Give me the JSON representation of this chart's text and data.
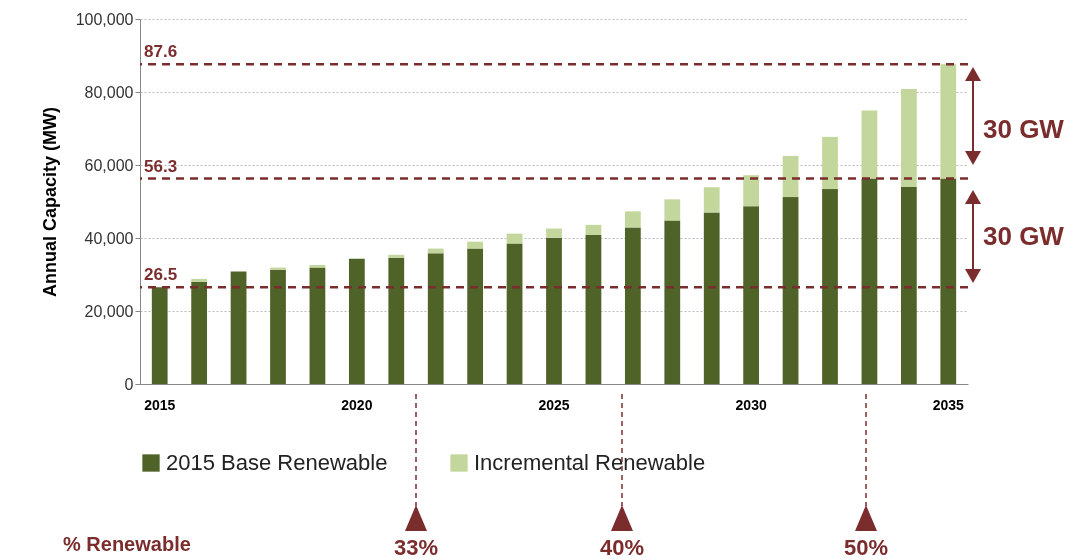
{
  "chart_data": {
    "type": "bar",
    "stacked": true,
    "ylabel": "Annual  Capacity (MW)",
    "categories": [
      "2015",
      null,
      null,
      null,
      null,
      "2020",
      null,
      null,
      null,
      null,
      "2025",
      null,
      null,
      null,
      null,
      "2030",
      null,
      null,
      null,
      null,
      "2035"
    ],
    "series": [
      {
        "name": "2015 Base Renewable",
        "color": "#4f6228",
        "values": [
          26500,
          28000,
          30800,
          31300,
          31900,
          34300,
          34600,
          35800,
          37100,
          38500,
          40100,
          40900,
          42900,
          44800,
          47000,
          48700,
          51200,
          53400,
          56300,
          54000,
          56300
        ]
      },
      {
        "name": "Incremental Renewable",
        "color": "#c3d69b",
        "values": [
          0,
          800,
          0,
          600,
          700,
          null,
          800,
          1300,
          1900,
          2700,
          2500,
          2700,
          4400,
          5800,
          6900,
          8500,
          11300,
          14300,
          18600,
          26800,
          31300
        ]
      }
    ],
    "ylim": [
      0,
      100000
    ],
    "yticks": [
      0,
      {
        "value": 20000,
        "label": "20,000"
      },
      {
        "value": 40000,
        "label": "40,000"
      },
      {
        "value": 60000,
        "label": "60,000"
      },
      {
        "value": 80000,
        "label": "80,000"
      },
      {
        "value": 100000,
        "label": "100,000"
      }
    ],
    "grid": "y",
    "legend": "bottom",
    "ref_lines": [
      {
        "axis": "y",
        "value": 87600,
        "color": "#7b2c2c",
        "line_style": "dashed"
      },
      {
        "axis": "y",
        "value": 56300,
        "color": "#7b2c2c",
        "line_style": "dashed"
      },
      {
        "axis": "y",
        "value": 26500,
        "color": "#7b2c2c",
        "line_style": "dashed"
      }
    ],
    "annotations": [
      "30 GW",
      "30 GW",
      "% Renewable",
      "33%",
      "40%",
      "50%",
      {
        "text": "87.6",
        "y": 87600
      },
      {
        "text": "56.3",
        "y": 56300
      },
      {
        "text": "26.5",
        "y": 26500
      }
    ]
  }
}
